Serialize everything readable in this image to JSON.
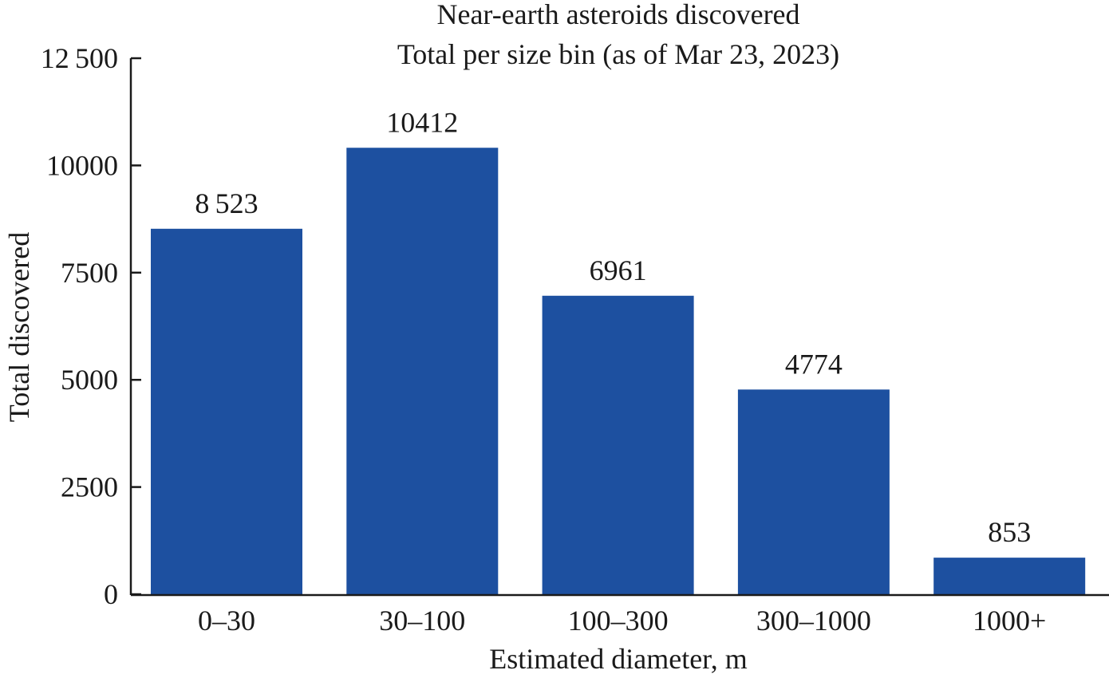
{
  "chart_data": {
    "type": "bar",
    "title": "Near-earth asteroids discovered",
    "subtitle": "Total per size bin (as of Mar 23, 2023)",
    "xlabel": "Estimated diameter, m",
    "ylabel": "Total discovered",
    "categories": [
      "0–30",
      "30–100",
      "100–300",
      "300–1000",
      "1000+"
    ],
    "values": [
      8523,
      10412,
      6961,
      4774,
      853
    ],
    "data_labels": [
      "8 523",
      "10412",
      "6961",
      "4774",
      "853"
    ],
    "ylim": [
      0,
      12500
    ],
    "yticks": [
      0,
      2500,
      5000,
      7500,
      10000,
      12500
    ],
    "ytick_labels": [
      "0",
      "2500",
      "5000",
      "7500",
      "10000",
      "12 500"
    ],
    "grid": false,
    "bar_color": "#1d50a0"
  }
}
